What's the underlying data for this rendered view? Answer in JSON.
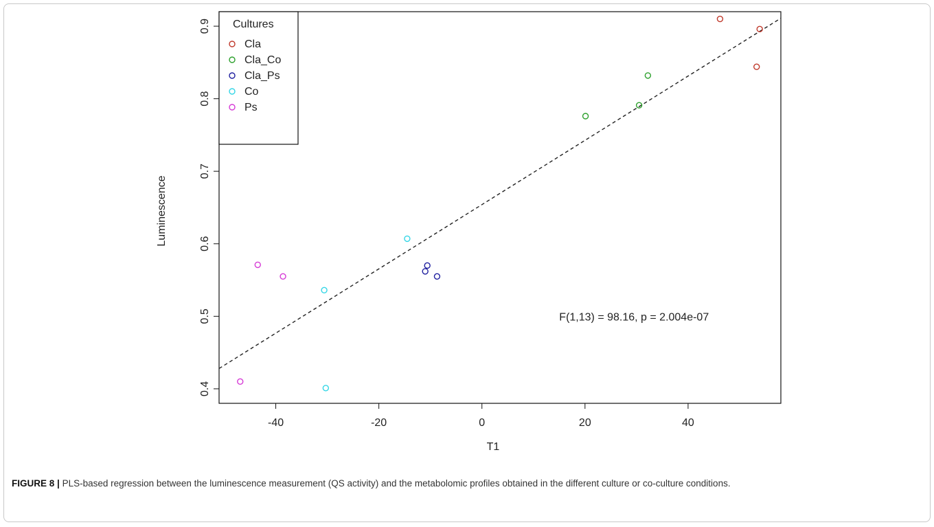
{
  "figure": {
    "label": "FIGURE 8 |",
    "caption": "PLS-based regression between the luminescence measurement (QS activity) and the metabolomic profiles obtained in the different culture or co-culture conditions."
  },
  "chart_data": {
    "type": "scatter",
    "xlabel": "T1",
    "ylabel": "Luminescence",
    "xlim": [
      -51,
      58
    ],
    "ylim": [
      0.38,
      0.92
    ],
    "x_ticks": [
      -40,
      -20,
      0,
      20,
      40
    ],
    "x_tick_labels": [
      "-40",
      "-20",
      "0",
      "20",
      "40"
    ],
    "y_ticks": [
      0.4,
      0.5,
      0.6,
      0.7,
      0.8,
      0.9
    ],
    "y_tick_labels": [
      "0.4",
      "0.5",
      "0.6",
      "0.7",
      "0.8",
      "0.9"
    ],
    "grid": false,
    "legend": {
      "title": "Cultures",
      "position": "top-left"
    },
    "series": [
      {
        "name": "Cla",
        "color": "#c0392b",
        "points": [
          [
            46.2,
            0.91
          ],
          [
            53.9,
            0.896
          ],
          [
            53.3,
            0.844
          ]
        ]
      },
      {
        "name": "Cla_Co",
        "color": "#2ca02c",
        "points": [
          [
            20.1,
            0.776
          ],
          [
            30.5,
            0.791
          ],
          [
            32.2,
            0.832
          ]
        ]
      },
      {
        "name": "Cla_Ps",
        "color": "#1f1f9f",
        "points": [
          [
            -10.6,
            0.57
          ],
          [
            -11.0,
            0.562
          ],
          [
            -8.7,
            0.555
          ]
        ]
      },
      {
        "name": "Co",
        "color": "#33d6e6",
        "points": [
          [
            -14.5,
            0.607
          ],
          [
            -30.6,
            0.536
          ],
          [
            -30.3,
            0.401
          ]
        ]
      },
      {
        "name": "Ps",
        "color": "#d63ad6",
        "points": [
          [
            -43.5,
            0.571
          ],
          [
            -38.6,
            0.555
          ],
          [
            -46.9,
            0.41
          ]
        ]
      }
    ],
    "regression_line": {
      "x": [
        -51,
        58
      ],
      "y": [
        0.428,
        0.911
      ],
      "style": "dashed"
    },
    "annotation": {
      "text": "F(1,13) = 98.16, p = 2.004e-07",
      "x": 15,
      "y": 0.5
    }
  }
}
